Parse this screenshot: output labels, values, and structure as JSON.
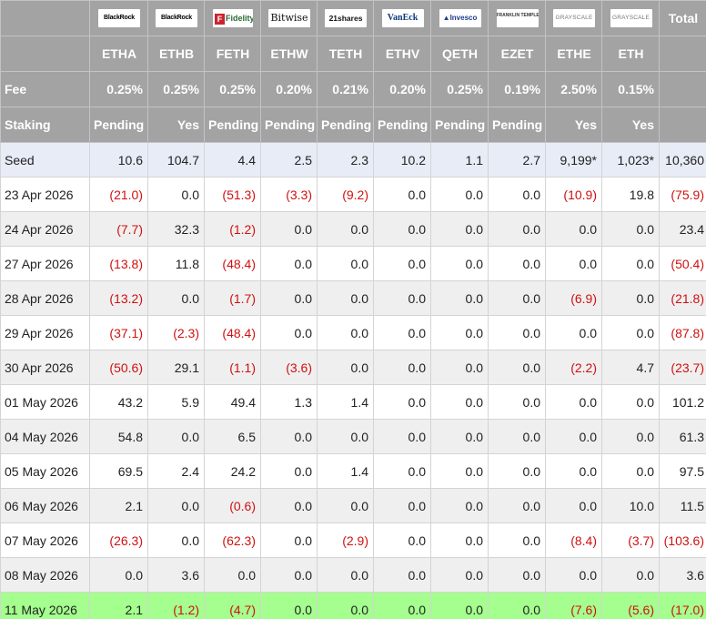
{
  "logos": [
    "BlackRock",
    "BlackRock",
    "Fidelity",
    "Bitwise",
    "21shares",
    "VanEck",
    "Invesco",
    "FRANKLIN TEMPLETON",
    "GRAYSCALE",
    "GRAYSCALE"
  ],
  "fidelity_mark": "F",
  "invesco_mark": "▲",
  "total_label": "Total",
  "tickers": [
    "ETHA",
    "ETHB",
    "FETH",
    "ETHW",
    "TETH",
    "ETHV",
    "QETH",
    "EZET",
    "ETHE",
    "ETH"
  ],
  "fee": {
    "label": "Fee",
    "values": [
      "0.25%",
      "0.25%",
      "0.25%",
      "0.20%",
      "0.21%",
      "0.20%",
      "0.25%",
      "0.19%",
      "2.50%",
      "0.15%"
    ]
  },
  "staking": {
    "label": "Staking",
    "values": [
      "Pending",
      "Yes",
      "Pending",
      "Pending",
      "Pending",
      "Pending",
      "Pending",
      "Pending",
      "Yes",
      "Yes"
    ]
  },
  "rows": [
    {
      "label": "Seed",
      "cells": [
        "10.6",
        "104.7",
        "4.4",
        "2.5",
        "2.3",
        "10.2",
        "1.1",
        "2.7",
        "9,199*",
        "1,023*"
      ],
      "total": "10,360"
    },
    {
      "label": "23 Apr 2026",
      "cells": [
        "(21.0)",
        "0.0",
        "(51.3)",
        "(3.3)",
        "(9.2)",
        "0.0",
        "0.0",
        "0.0",
        "(10.9)",
        "19.8"
      ],
      "total": "(75.9)"
    },
    {
      "label": "24 Apr 2026",
      "cells": [
        "(7.7)",
        "32.3",
        "(1.2)",
        "0.0",
        "0.0",
        "0.0",
        "0.0",
        "0.0",
        "0.0",
        "0.0"
      ],
      "total": "23.4"
    },
    {
      "label": "27 Apr 2026",
      "cells": [
        "(13.8)",
        "11.8",
        "(48.4)",
        "0.0",
        "0.0",
        "0.0",
        "0.0",
        "0.0",
        "0.0",
        "0.0"
      ],
      "total": "(50.4)"
    },
    {
      "label": "28 Apr 2026",
      "cells": [
        "(13.2)",
        "0.0",
        "(1.7)",
        "0.0",
        "0.0",
        "0.0",
        "0.0",
        "0.0",
        "(6.9)",
        "0.0"
      ],
      "total": "(21.8)"
    },
    {
      "label": "29 Apr 2026",
      "cells": [
        "(37.1)",
        "(2.3)",
        "(48.4)",
        "0.0",
        "0.0",
        "0.0",
        "0.0",
        "0.0",
        "0.0",
        "0.0"
      ],
      "total": "(87.8)"
    },
    {
      "label": "30 Apr 2026",
      "cells": [
        "(50.6)",
        "29.1",
        "(1.1)",
        "(3.6)",
        "0.0",
        "0.0",
        "0.0",
        "0.0",
        "(2.2)",
        "4.7"
      ],
      "total": "(23.7)"
    },
    {
      "label": "01 May 2026",
      "cells": [
        "43.2",
        "5.9",
        "49.4",
        "1.3",
        "1.4",
        "0.0",
        "0.0",
        "0.0",
        "0.0",
        "0.0"
      ],
      "total": "101.2"
    },
    {
      "label": "04 May 2026",
      "cells": [
        "54.8",
        "0.0",
        "6.5",
        "0.0",
        "0.0",
        "0.0",
        "0.0",
        "0.0",
        "0.0",
        "0.0"
      ],
      "total": "61.3"
    },
    {
      "label": "05 May 2026",
      "cells": [
        "69.5",
        "2.4",
        "24.2",
        "0.0",
        "1.4",
        "0.0",
        "0.0",
        "0.0",
        "0.0",
        "0.0"
      ],
      "total": "97.5"
    },
    {
      "label": "06 May 2026",
      "cells": [
        "2.1",
        "0.0",
        "(0.6)",
        "0.0",
        "0.0",
        "0.0",
        "0.0",
        "0.0",
        "0.0",
        "10.0"
      ],
      "total": "11.5"
    },
    {
      "label": "07 May 2026",
      "cells": [
        "(26.3)",
        "0.0",
        "(62.3)",
        "0.0",
        "(2.9)",
        "0.0",
        "0.0",
        "0.0",
        "(8.4)",
        "(3.7)"
      ],
      "total": "(103.6)"
    },
    {
      "label": "08 May 2026",
      "cells": [
        "0.0",
        "3.6",
        "0.0",
        "0.0",
        "0.0",
        "0.0",
        "0.0",
        "0.0",
        "0.0",
        "0.0"
      ],
      "total": "3.6"
    },
    {
      "label": "11 May 2026",
      "cells": [
        "2.1",
        "(1.2)",
        "(4.7)",
        "0.0",
        "0.0",
        "0.0",
        "0.0",
        "0.0",
        "(7.6)",
        "(5.6)"
      ],
      "total": "(17.0)"
    }
  ],
  "colors": {
    "header_bg": "#a3a3a3",
    "negative": "#d01010",
    "seed_row_bg": "#e8ecf7",
    "alt_row_bg": "#efefef",
    "latest_row_bg": "#a4ff8e"
  }
}
